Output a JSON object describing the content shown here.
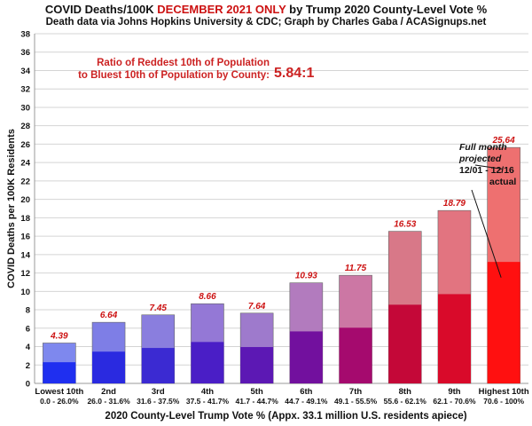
{
  "header": {
    "title_part1": "COVID Deaths/100K ",
    "title_highlight": "DECEMBER 2021 ONLY",
    "title_part2": " by Trump 2020 County-Level Vote %",
    "subtitle": "Death data via Johns Hopkins University & CDC; Graph by Charles Gaba / ACASignups.net"
  },
  "annotation": {
    "ratio_line1": "Ratio of Reddest 10th of Population",
    "ratio_line2": "to Bluest 10th of Population by County:",
    "ratio_value": "5.84:1",
    "note_line1": "Full month",
    "note_line2": "projected",
    "note_line3": "12/01 - 12/16",
    "note_line4": "actual"
  },
  "chart_data": {
    "type": "bar",
    "stacked": true,
    "title": "COVID Deaths/100K DECEMBER 2021 ONLY by Trump 2020 County-Level Vote %",
    "xlabel": "2020 County-Level Trump Vote % (Appx. 33.1 million U.S. residents apiece)",
    "ylabel": "COVID Deaths per 100K Residents",
    "ylim": [
      0,
      38
    ],
    "yticks": [
      0,
      2,
      4,
      6,
      8,
      10,
      12,
      14,
      16,
      18,
      20,
      22,
      24,
      26,
      28,
      30,
      32,
      34,
      36,
      38
    ],
    "grid": true,
    "categories": [
      "Lowest 10th",
      "2nd",
      "3rd",
      "4th",
      "5th",
      "6th",
      "7th",
      "8th",
      "9th",
      "Highest 10th"
    ],
    "ranges": [
      "0.0 - 26.0%",
      "26.0 - 31.6%",
      "31.6 - 37.5%",
      "37.5 - 41.7%",
      "41.7 - 44.7%",
      "44.7 - 49.1%",
      "49.1 - 55.5%",
      "55.6 - 62.1%",
      "62.1 - 70.6%",
      "70.6 - 100%"
    ],
    "actual": [
      2.3,
      3.45,
      3.85,
      4.5,
      3.95,
      5.65,
      6.05,
      8.55,
      9.7,
      13.2
    ],
    "projected_total": [
      4.39,
      6.64,
      7.45,
      8.66,
      7.64,
      10.93,
      11.75,
      16.53,
      18.79,
      25.64
    ],
    "value_labels": [
      "4.39",
      "6.64",
      "7.45",
      "8.66",
      "7.64",
      "10.93",
      "11.75",
      "16.53",
      "18.79",
      "25.64"
    ],
    "colors_actual": [
      "#1f2ff0",
      "#2a2ae0",
      "#3b2ad2",
      "#4a1ec6",
      "#5c18b4",
      "#72109e",
      "#a50a6e",
      "#c40838",
      "#d90a2a",
      "#ff1010"
    ],
    "colors_projected": [
      "#7e88ee",
      "#7e7ee6",
      "#8a7ede",
      "#9478d6",
      "#9e7acc",
      "#b27bbe",
      "#cc77a4",
      "#d87888",
      "#e27480",
      "#ee7070"
    ],
    "label_color": "#cc1111"
  }
}
